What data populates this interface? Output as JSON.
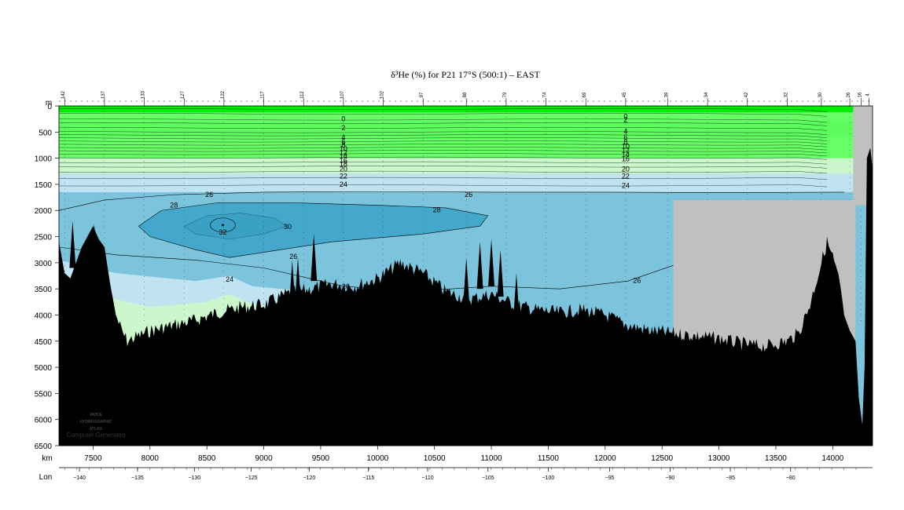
{
  "chart_data": {
    "type": "area",
    "title": "δ³He (%) for P21 17°S (500:1) – EAST",
    "y_unit": "m",
    "x_unit": "km",
    "lon_label": "Lon",
    "xlim": [
      7200,
      14350
    ],
    "ylim": [
      6500,
      0
    ],
    "km_ticks": [
      7500,
      8000,
      8500,
      9000,
      9500,
      10000,
      10500,
      11000,
      11500,
      12000,
      12500,
      13000,
      13500,
      14000
    ],
    "depth_ticks": [
      0,
      500,
      1000,
      1500,
      2000,
      2500,
      3000,
      3500,
      4000,
      4500,
      5000,
      5500,
      6000,
      6500
    ],
    "lon_ticks": [
      {
        "km": 7380,
        "label": "−140"
      },
      {
        "km": 7890,
        "label": "−135"
      },
      {
        "km": 8390,
        "label": "−130"
      },
      {
        "km": 8890,
        "label": "−125"
      },
      {
        "km": 9400,
        "label": "−120"
      },
      {
        "km": 9920,
        "label": "−115"
      },
      {
        "km": 10440,
        "label": "−110"
      },
      {
        "km": 10970,
        "label": "−105"
      },
      {
        "km": 11500,
        "label": "−100"
      },
      {
        "km": 12040,
        "label": "−95"
      },
      {
        "km": 12570,
        "label": "−90"
      },
      {
        "km": 13100,
        "label": "−85"
      },
      {
        "km": 13630,
        "label": "−80"
      }
    ],
    "stations": [
      {
        "km": 7250,
        "label": "142"
      },
      {
        "km": 7600,
        "label": "137"
      },
      {
        "km": 7950,
        "label": "133"
      },
      {
        "km": 8300,
        "label": "127"
      },
      {
        "km": 8650,
        "label": "122"
      },
      {
        "km": 9000,
        "label": "117"
      },
      {
        "km": 9350,
        "label": "112"
      },
      {
        "km": 9700,
        "label": "107"
      },
      {
        "km": 10050,
        "label": "102"
      },
      {
        "km": 10400,
        "label": "97"
      },
      {
        "km": 10780,
        "label": "88"
      },
      {
        "km": 11130,
        "label": "79"
      },
      {
        "km": 11480,
        "label": "74"
      },
      {
        "km": 11830,
        "label": "69"
      },
      {
        "km": 12180,
        "label": "45"
      },
      {
        "km": 12550,
        "label": "39"
      },
      {
        "km": 12900,
        "label": "34"
      },
      {
        "km": 13250,
        "label": "42"
      },
      {
        "km": 13600,
        "label": "32"
      },
      {
        "km": 13900,
        "label": "30"
      },
      {
        "km": 14150,
        "label": "26"
      },
      {
        "km": 14250,
        "label": "16"
      },
      {
        "km": 14320,
        "label": "4"
      }
    ],
    "contour_levels": [
      0,
      2,
      4,
      6,
      8,
      10,
      12,
      14,
      16,
      18,
      20,
      22,
      24,
      26,
      28,
      30,
      32
    ],
    "contour_labels": [
      {
        "value": "0",
        "km": 9700,
        "depth": 250
      },
      {
        "value": "2",
        "km": 9700,
        "depth": 420
      },
      {
        "value": "4",
        "km": 9700,
        "depth": 600
      },
      {
        "value": "6",
        "km": 9700,
        "depth": 680
      },
      {
        "value": "8",
        "km": 9700,
        "depth": 750
      },
      {
        "value": "10",
        "km": 9700,
        "depth": 820
      },
      {
        "value": "12",
        "km": 9700,
        "depth": 890
      },
      {
        "value": "14",
        "km": 9700,
        "depth": 960
      },
      {
        "value": "16",
        "km": 9700,
        "depth": 1040
      },
      {
        "value": "18",
        "km": 9700,
        "depth": 1110
      },
      {
        "value": "20",
        "km": 9700,
        "depth": 1210
      },
      {
        "value": "22",
        "km": 9700,
        "depth": 1340
      },
      {
        "value": "24",
        "km": 9700,
        "depth": 1500
      },
      {
        "value": "0",
        "km": 12180,
        "depth": 200
      },
      {
        "value": "2",
        "km": 12180,
        "depth": 260
      },
      {
        "value": "4",
        "km": 12180,
        "depth": 490
      },
      {
        "value": "6",
        "km": 12180,
        "depth": 600
      },
      {
        "value": "8",
        "km": 12180,
        "depth": 690
      },
      {
        "value": "10",
        "km": 12180,
        "depth": 770
      },
      {
        "value": "12",
        "km": 12180,
        "depth": 850
      },
      {
        "value": "14",
        "km": 12180,
        "depth": 930
      },
      {
        "value": "16",
        "km": 12180,
        "depth": 1010
      },
      {
        "value": "20",
        "km": 12180,
        "depth": 1210
      },
      {
        "value": "22",
        "km": 12180,
        "depth": 1340
      },
      {
        "value": "24",
        "km": 12180,
        "depth": 1520
      },
      {
        "value": "26",
        "km": 8520,
        "depth": 1700
      },
      {
        "value": "26",
        "km": 10800,
        "depth": 1700
      },
      {
        "value": "28",
        "km": 8210,
        "depth": 1900
      },
      {
        "value": "28",
        "km": 10520,
        "depth": 1990
      },
      {
        "value": "30",
        "km": 9210,
        "depth": 2310
      },
      {
        "value": "32",
        "km": 8640,
        "depth": 2420
      },
      {
        "value": "26",
        "km": 9260,
        "depth": 2880
      },
      {
        "value": "24",
        "km": 8700,
        "depth": 3320
      },
      {
        "value": "26",
        "km": 9720,
        "depth": 3450
      },
      {
        "value": "26",
        "km": 12280,
        "depth": 3340
      }
    ],
    "bands": [
      {
        "level": "0–10",
        "color": "#00ee00"
      },
      {
        "level": "10–20",
        "color": "#66ff66"
      },
      {
        "level": "20–24",
        "color": "#ccf7cc"
      },
      {
        "level": "24–26",
        "color": "#bfe3f0"
      },
      {
        "level": "26–28",
        "color": "#7cc3dc"
      },
      {
        "level": "28–32",
        "color": "#44a8cc"
      },
      {
        "level": "32+",
        "color": "#2892b8"
      }
    ],
    "colors": {
      "nodata": "#c0c0c0",
      "bathymetry": "#000000"
    },
    "bathymetry": [
      [
        7200,
        2600
      ],
      [
        7250,
        3200
      ],
      [
        7300,
        3300
      ],
      [
        7350,
        3000
      ],
      [
        7400,
        2700
      ],
      [
        7450,
        2500
      ],
      [
        7500,
        2300
      ],
      [
        7550,
        2550
      ],
      [
        7600,
        2700
      ],
      [
        7650,
        3400
      ],
      [
        7700,
        4000
      ],
      [
        7750,
        4300
      ],
      [
        7800,
        4500
      ],
      [
        7900,
        4400
      ],
      [
        8000,
        4300
      ],
      [
        8200,
        4200
      ],
      [
        8400,
        4100
      ],
      [
        8600,
        3950
      ],
      [
        8800,
        3850
      ],
      [
        9000,
        3800
      ],
      [
        9200,
        3600
      ],
      [
        9400,
        3500
      ],
      [
        9600,
        3400
      ],
      [
        9800,
        3450
      ],
      [
        10000,
        3300
      ],
      [
        10200,
        3000
      ],
      [
        10400,
        3200
      ],
      [
        10600,
        3550
      ],
      [
        10800,
        3700
      ],
      [
        11000,
        3600
      ],
      [
        11200,
        3800
      ],
      [
        11400,
        3900
      ],
      [
        11600,
        3950
      ],
      [
        11800,
        3900
      ],
      [
        12000,
        4000
      ],
      [
        12200,
        4200
      ],
      [
        12400,
        4300
      ],
      [
        12600,
        4350
      ],
      [
        12800,
        4400
      ],
      [
        13000,
        4450
      ],
      [
        13200,
        4550
      ],
      [
        13400,
        4600
      ],
      [
        13600,
        4500
      ],
      [
        13700,
        4350
      ],
      [
        13800,
        3800
      ],
      [
        13900,
        3000
      ],
      [
        13950,
        2600
      ],
      [
        14000,
        2900
      ],
      [
        14050,
        3300
      ],
      [
        14100,
        4000
      ],
      [
        14150,
        4300
      ],
      [
        14200,
        4500
      ],
      [
        14230,
        5600
      ],
      [
        14260,
        6100
      ],
      [
        14280,
        5000
      ],
      [
        14300,
        1000
      ],
      [
        14330,
        800
      ],
      [
        14350,
        1200
      ]
    ],
    "bathy_spikes": [
      [
        7320,
        2200
      ],
      [
        7510,
        2250
      ],
      [
        9440,
        2450
      ],
      [
        9250,
        2950
      ],
      [
        9300,
        2900
      ],
      [
        10780,
        2900
      ],
      [
        10900,
        2600
      ],
      [
        11000,
        2550
      ],
      [
        11080,
        2750
      ],
      [
        11220,
        3200
      ],
      [
        13960,
        2600
      ]
    ]
  },
  "watermark": {
    "line1": "WOCE",
    "line2": "HYDROGRAPHIC",
    "line3": "ATLAS",
    "line4": "Computer Generated"
  }
}
